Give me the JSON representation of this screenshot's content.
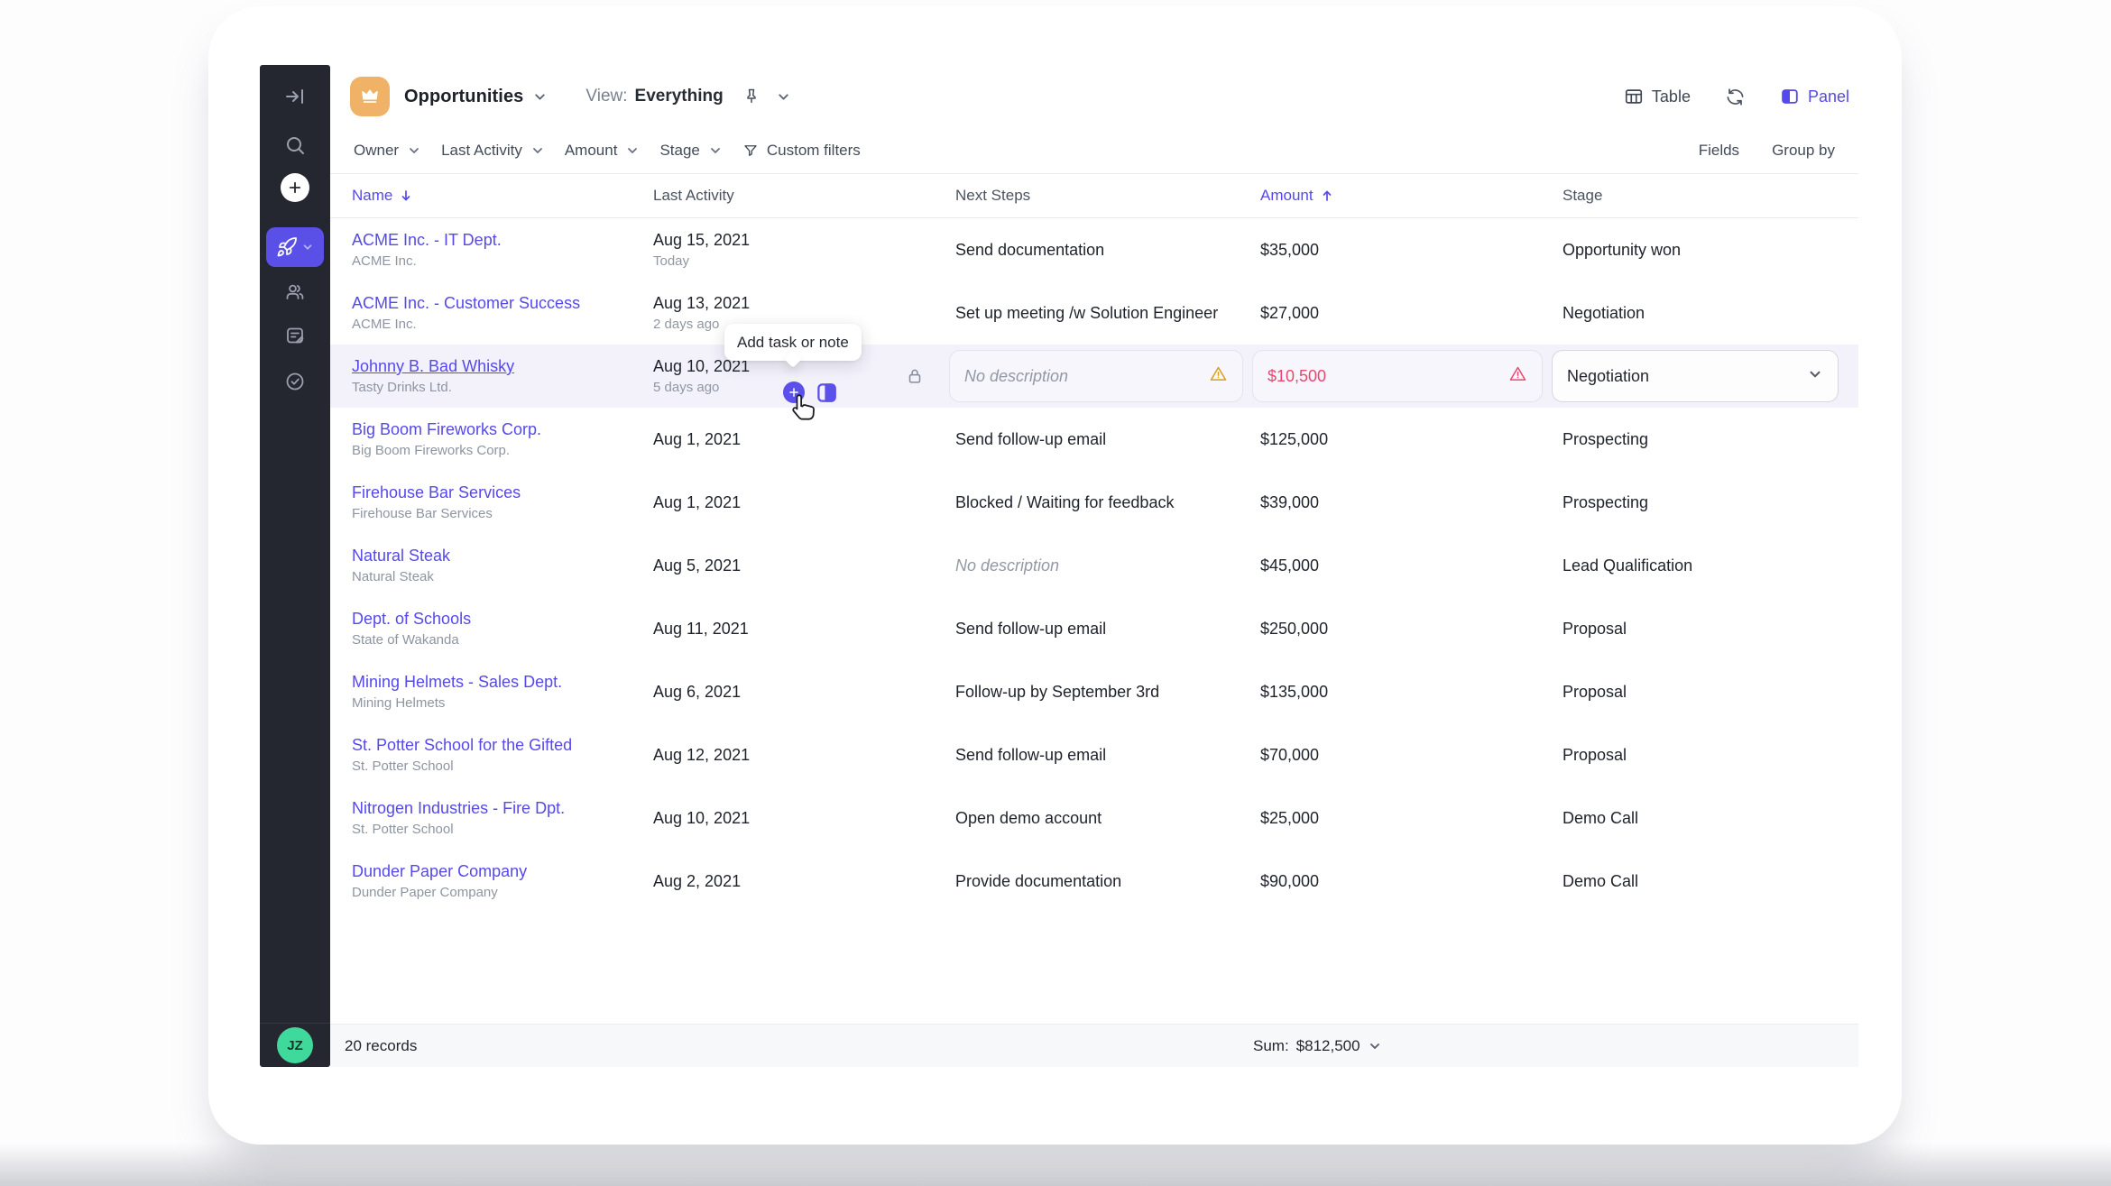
{
  "header": {
    "title": "Opportunities",
    "view_label": "View:",
    "view_value": "Everything",
    "table_label": "Table",
    "panel_label": "Panel"
  },
  "filters": {
    "items": [
      "Owner",
      "Last Activity",
      "Amount",
      "Stage"
    ],
    "custom_label": "Custom filters",
    "fields_label": "Fields",
    "groupby_label": "Group by"
  },
  "table": {
    "columns": [
      {
        "label": "Name",
        "sort": "desc"
      },
      {
        "label": "Last Activity",
        "sort": null
      },
      {
        "label": "Next Steps",
        "sort": null
      },
      {
        "label": "Amount",
        "sort": "asc"
      },
      {
        "label": "Stage",
        "sort": null
      }
    ],
    "rows": [
      {
        "name": "ACME Inc. - IT Dept.",
        "company": "ACME Inc.",
        "date": "Aug 15, 2021",
        "date_note": "Today",
        "next_steps": "Send documentation",
        "amount": "$35,000",
        "stage": "Opportunity won"
      },
      {
        "name": "ACME Inc. - Customer Success",
        "company": "ACME Inc.",
        "date": "Aug 13, 2021",
        "date_note": "2 days ago",
        "next_steps": "Set up meeting /w Solution Engineer",
        "amount": "$27,000",
        "stage": "Negotiation"
      },
      {
        "name": "Johnny B. Bad Whisky",
        "company": "Tasty Drinks Ltd.",
        "date": "Aug 10, 2021",
        "date_note": "5 days ago",
        "next_steps": "No description",
        "amount": "$10,500",
        "stage": "Negotiation",
        "highlighted": true,
        "next_placeholder": true,
        "next_warning": true,
        "amount_error": true,
        "stage_dropdown": true,
        "locked": true
      },
      {
        "name": "Big Boom Fireworks Corp.",
        "company": "Big Boom Fireworks Corp.",
        "date": "Aug 1, 2021",
        "date_note": "",
        "next_steps": "Send follow-up email",
        "amount": "$125,000",
        "stage": "Prospecting"
      },
      {
        "name": "Firehouse Bar Services",
        "company": "Firehouse Bar Services",
        "date": "Aug 1, 2021",
        "date_note": "",
        "next_steps": "Blocked / Waiting for feedback",
        "amount": "$39,000",
        "stage": "Prospecting"
      },
      {
        "name": "Natural Steak",
        "company": "Natural Steak",
        "date": "Aug 5, 2021",
        "date_note": "",
        "next_steps": "No description",
        "next_empty": true,
        "amount": "$45,000",
        "stage": "Lead Qualification"
      },
      {
        "name": "Dept. of Schools",
        "company": "State of Wakanda",
        "date": "Aug 11, 2021",
        "date_note": "",
        "next_steps": "Send follow-up email",
        "amount": "$250,000",
        "stage": "Proposal"
      },
      {
        "name": "Mining Helmets - Sales Dept.",
        "company": "Mining Helmets",
        "date": "Aug 6, 2021",
        "date_note": "",
        "next_steps": "Follow-up by September 3rd",
        "amount": "$135,000",
        "stage": "Proposal"
      },
      {
        "name": "St. Potter School for the Gifted",
        "company": "St. Potter School",
        "date": "Aug 12, 2021",
        "date_note": "",
        "next_steps": "Send follow-up email",
        "amount": "$70,000",
        "stage": "Proposal"
      },
      {
        "name": "Nitrogen Industries - Fire Dpt.",
        "company": "St. Potter School",
        "date": "Aug 10, 2021",
        "date_note": "",
        "next_steps": "Open demo account",
        "amount": "$25,000",
        "stage": "Demo Call"
      },
      {
        "name": "Dunder Paper Company",
        "company": "Dunder Paper Company",
        "date": "Aug 2, 2021",
        "date_note": "",
        "next_steps": "Provide documentation",
        "amount": "$90,000",
        "stage": "Demo Call"
      }
    ]
  },
  "tooltip": {
    "label": "Add task or note"
  },
  "footer": {
    "records": "20 records",
    "sum_label": "Sum:",
    "sum_value": "$812,500"
  },
  "sidebar": {
    "avatar_initials": "JZ"
  },
  "colors": {
    "accent_purple": "#5649ec",
    "sidebar_bg": "#252730",
    "active_tile": "#5a50e8",
    "row_highlight": "#f3f2fb",
    "crown_orange": "#f0b266",
    "avatar_green": "#3fd99c",
    "warning_amber": "#d99e1b",
    "error_red": "#e8486e"
  }
}
